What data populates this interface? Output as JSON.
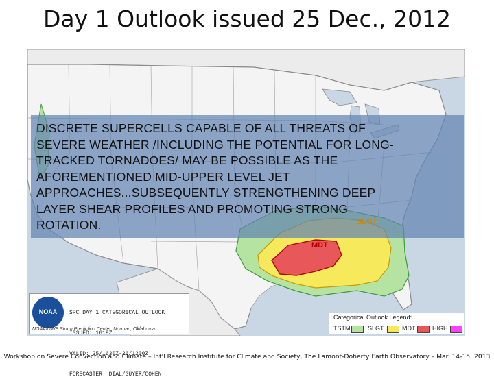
{
  "slide": {
    "title": "Day 1 Outlook issued 25 Dec., 2012",
    "footer": "Workshop on Severe Convection and Climate – Int'l Research Institute for Climate and Society, The Lamont-Doherty Earth Observatory – Mar. 14-15, 2013"
  },
  "overlay": {
    "text_lines": [
      "DISCRETE SUPERCELLS CAPABLE OF ALL THREATS OF",
      "SEVERE WEATHER /INCLUDING THE POTENTIAL FOR LONG-",
      "TRACKED TORNADOES/ MAY BE POSSIBLE AS THE",
      "AFOREMENTIONED MID-UPPER LEVEL JET",
      "APPROACHES...SUBSEQUENTLY STRENGTHENING DEEP",
      "LAYER SHEAR PROFILES AND PROMOTING STRONG",
      "ROTATION."
    ]
  },
  "map": {
    "labels": {
      "slight": "SLGT",
      "moderate": "MDT"
    },
    "colors": {
      "tstm": "#b5e4a2",
      "slight": "#f6ea5c",
      "moderate": "#e8585a",
      "high": "#ff40ff",
      "land": "#f3f3f3",
      "water": "#c9d7e4"
    }
  },
  "info_box": {
    "logo": "NOAA",
    "lines": [
      "SPC DAY 1 CATEGORICAL OUTLOOK",
      "ISSUED: 1619Z",
      "VALID: 25/1630Z-26/1200Z",
      "FORECASTER: DIAL/GUYER/COHEN"
    ],
    "credit": "NOAA/NWS Storm Prediction Center, Norman, Oklahoma"
  },
  "legend": {
    "title": "Categorical Outlook Legend:",
    "items": [
      {
        "label": "TSTM",
        "color": "#b5e4a2"
      },
      {
        "label": "SLGT",
        "color": "#f6ea5c"
      },
      {
        "label": "MDT",
        "color": "#e8585a"
      },
      {
        "label": "HIGH",
        "color": "#ff40ff"
      }
    ]
  }
}
